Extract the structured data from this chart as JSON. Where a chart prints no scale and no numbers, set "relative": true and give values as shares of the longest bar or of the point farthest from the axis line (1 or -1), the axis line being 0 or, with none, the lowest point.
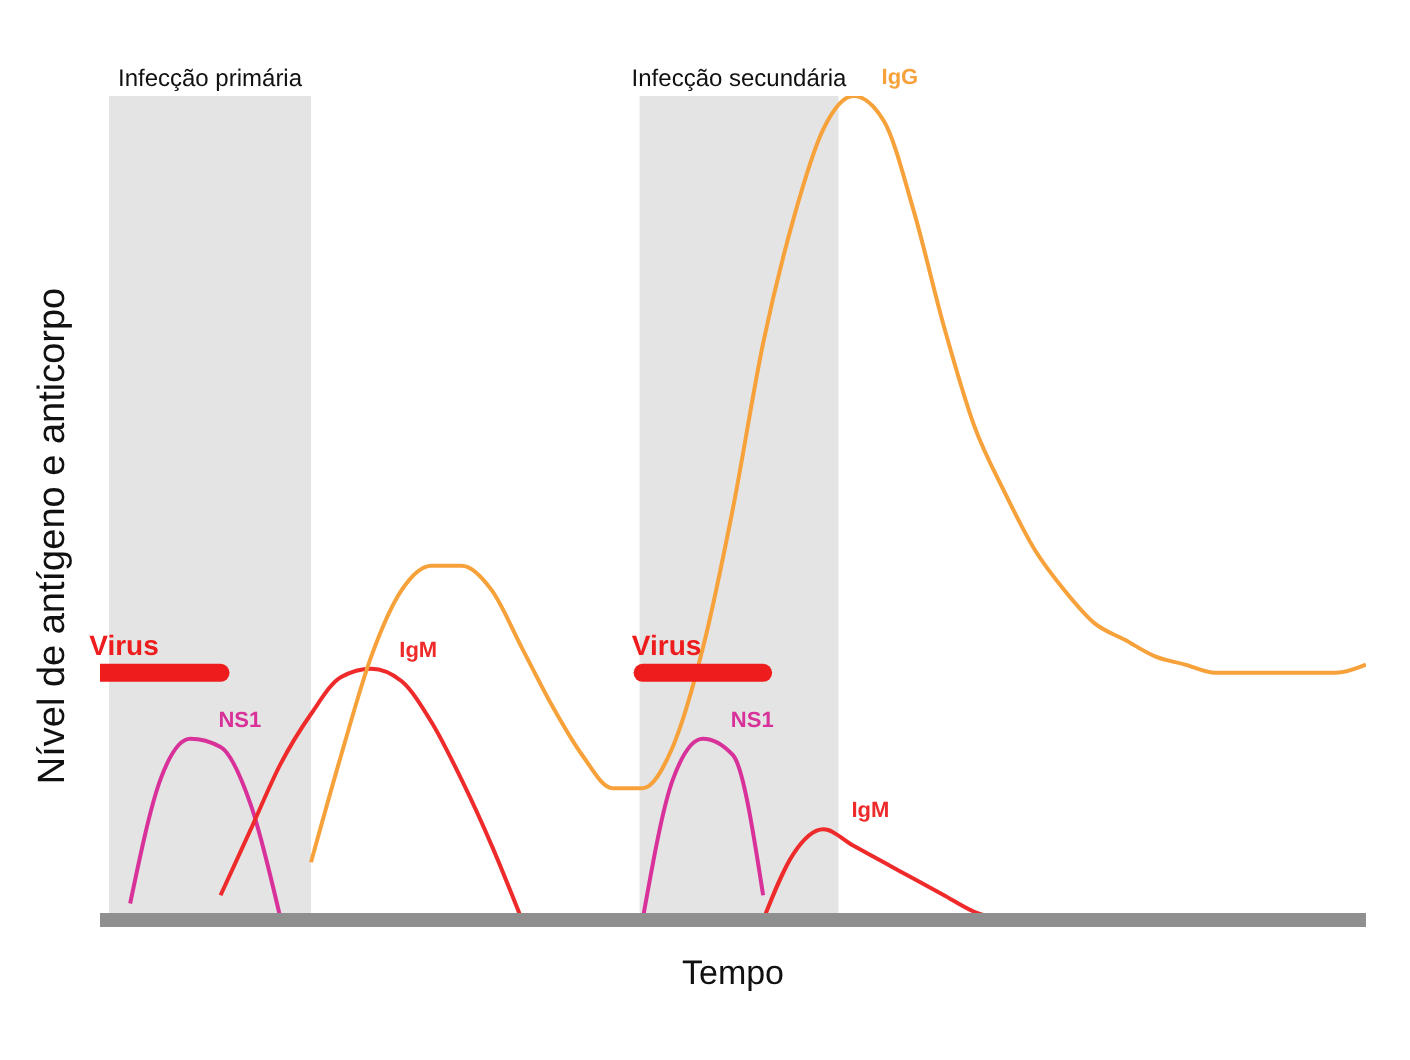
{
  "chart_data": {
    "type": "line",
    "relative": true,
    "xlabel": "Tempo",
    "ylabel": "Nível de antígeno e anticorpo",
    "categories": [
      null,
      null,
      null,
      null,
      null,
      null,
      null,
      null,
      null,
      null,
      null,
      null,
      null,
      null,
      null,
      null,
      null,
      null,
      null,
      null,
      null,
      null,
      null,
      null,
      null,
      null,
      null,
      null,
      null,
      null,
      null,
      null,
      null,
      null,
      null,
      null,
      null,
      null,
      null,
      null,
      null,
      null,
      null
    ],
    "series": [
      {
        "name": "Virus",
        "color": "#ee1c1c",
        "values": [
          0.3,
          0.3,
          0.3,
          0.3,
          0.3,
          null,
          null,
          null,
          null,
          null,
          null,
          null,
          null,
          null,
          null,
          null,
          null,
          null,
          null,
          null,
          null,
          null,
          null,
          null,
          null,
          null,
          null,
          null,
          null,
          null,
          null,
          null,
          null,
          null,
          null,
          null,
          null,
          null,
          null,
          null,
          null,
          null,
          null
        ]
      },
      {
        "name": "NS1",
        "color": "#d8329a",
        "values": [
          null,
          0.02,
          0.17,
          0.22,
          0.21,
          0.14,
          0,
          null,
          null,
          null,
          null,
          null,
          null,
          null,
          null,
          null,
          null,
          null,
          null,
          null,
          null,
          null,
          null,
          null,
          null,
          null,
          null,
          null,
          null,
          null,
          null,
          null,
          null,
          null,
          null,
          null,
          null,
          null,
          null,
          null,
          null,
          null,
          null
        ]
      },
      {
        "name": "IgM",
        "color": "#ee2a2a",
        "values": [
          null,
          null,
          null,
          null,
          0.03,
          0.11,
          0.19,
          0.25,
          0.295,
          0.305,
          0.29,
          0.24,
          0.17,
          0.09,
          0,
          null,
          null,
          null,
          null,
          null,
          null,
          null,
          null,
          null,
          null,
          null,
          null,
          null,
          null,
          null,
          null,
          null,
          null,
          null,
          null,
          null,
          null,
          null,
          null,
          null,
          null,
          null,
          null
        ]
      },
      {
        "name": "IgG",
        "color": "#f7a13a",
        "values": [
          null,
          null,
          null,
          null,
          null,
          null,
          null,
          0.07,
          0.2,
          0.32,
          0.4,
          0.43,
          0.43,
          0.4,
          0.33,
          0.26,
          0.2,
          0.16,
          0.16,
          0.21,
          0.33,
          0.5,
          0.7,
          0.85,
          0.96,
          1,
          0.97,
          0.86,
          0.72,
          0.6,
          0.52,
          0.45,
          0.4,
          0.36,
          0.34,
          0.32,
          0.31,
          0.3,
          0.3,
          0.3,
          0.3,
          0.3,
          0.31
        ]
      },
      {
        "name": "Virus",
        "color": "#ee1c1c",
        "values": [
          null,
          null,
          null,
          null,
          null,
          null,
          null,
          null,
          null,
          null,
          null,
          null,
          null,
          null,
          null,
          null,
          null,
          null,
          0.3,
          0.3,
          0.3,
          0.3,
          0.3,
          null,
          null,
          null,
          null,
          null,
          null,
          null,
          null,
          null,
          null,
          null,
          null,
          null,
          null,
          null,
          null,
          null,
          null,
          null,
          null
        ]
      },
      {
        "name": "NS1",
        "color": "#d8329a",
        "values": [
          null,
          null,
          null,
          null,
          null,
          null,
          null,
          null,
          null,
          null,
          null,
          null,
          null,
          null,
          null,
          null,
          null,
          null,
          0,
          0.17,
          0.22,
          0.2,
          0.03,
          null,
          null,
          null,
          null,
          null,
          null,
          null,
          null,
          null,
          null,
          null,
          null,
          null,
          null,
          null,
          null,
          null,
          null,
          null,
          null
        ]
      },
      {
        "name": "IgM",
        "color": "#ee2a2a",
        "values": [
          null,
          null,
          null,
          null,
          null,
          null,
          null,
          null,
          null,
          null,
          null,
          null,
          null,
          null,
          null,
          null,
          null,
          null,
          null,
          null,
          null,
          null,
          0,
          0.08,
          0.11,
          0.09,
          0.07,
          0.05,
          0.03,
          0.01,
          0,
          null,
          null,
          null,
          null,
          null,
          null,
          null,
          null,
          null,
          null,
          null,
          null
        ]
      }
    ],
    "annotations": [
      "Infecção primária",
      "Infecção secundária"
    ],
    "grid": false,
    "legend": false,
    "marker": "none",
    "line_style": "solid"
  }
}
